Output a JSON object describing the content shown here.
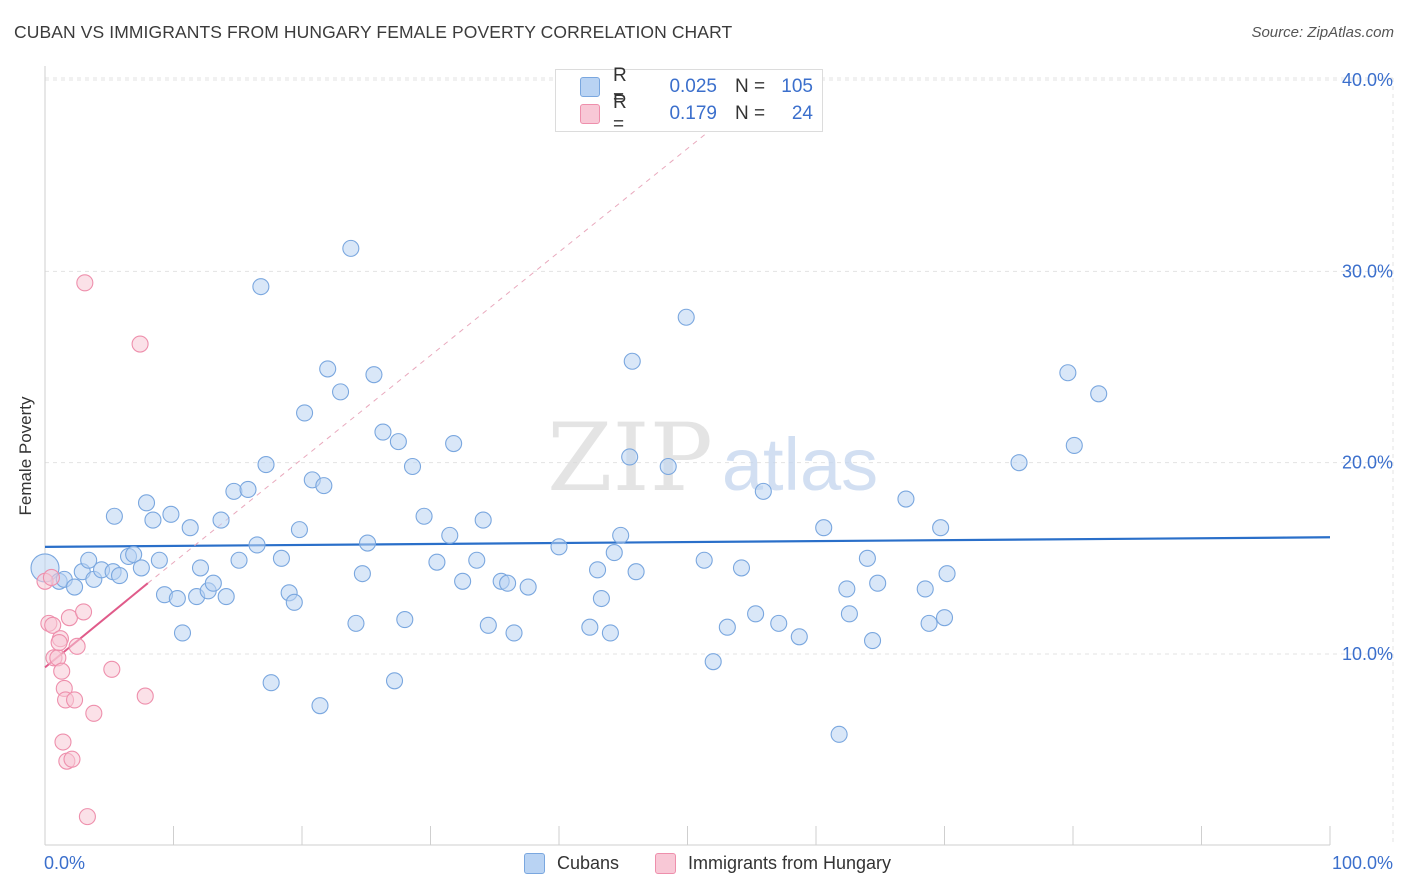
{
  "header": {
    "title": "CUBAN VS IMMIGRANTS FROM HUNGARY FEMALE POVERTY CORRELATION CHART",
    "source": "Source: ZipAtlas.com"
  },
  "colors": {
    "blue_fill": "#b9d3f3",
    "blue_stroke": "#7aa7df",
    "blue_line": "#2a6fc9",
    "pink_fill": "#f8c8d6",
    "pink_stroke": "#ee8fac",
    "pink_line": "#e05b8a",
    "axis_text": "#3b6fcc",
    "grid": "#e3e3e3"
  },
  "legend": {
    "rows": [
      {
        "r_label": "R =",
        "r_value": "0.025",
        "n_label": "N =",
        "n_value": "105"
      },
      {
        "r_label": "R =",
        "r_value": "0.179",
        "n_label": "N =",
        "n_value": "24"
      }
    ]
  },
  "bottom_legend": {
    "series1": "Cubans",
    "series2": "Immigrants from Hungary"
  },
  "watermark": {
    "part1": "ZIP",
    "part2": "atlas"
  },
  "chart_data": {
    "type": "scatter",
    "title": "CUBAN VS IMMIGRANTS FROM HUNGARY FEMALE POVERTY CORRELATION CHART",
    "xlabel": "",
    "ylabel": "Female Poverty",
    "xlim": [
      0,
      100
    ],
    "ylim": [
      0,
      42
    ],
    "x_tick_labels": [
      "0.0%",
      "100.0%"
    ],
    "y_ticks": [
      10,
      20,
      30,
      40
    ],
    "y_tick_labels": [
      "10.0%",
      "20.0%",
      "30.0%",
      "40.0%"
    ],
    "grid": true,
    "series": [
      {
        "name": "Cubans",
        "R": 0.025,
        "N": 105,
        "trend": {
          "x0": 0,
          "y0": 15.6,
          "x1": 100,
          "y1": 16.1
        },
        "points": [
          [
            0.0,
            14.5
          ],
          [
            1.1,
            13.8
          ],
          [
            1.5,
            13.9
          ],
          [
            2.3,
            13.5
          ],
          [
            2.9,
            14.3
          ],
          [
            3.4,
            14.9
          ],
          [
            3.8,
            13.9
          ],
          [
            4.4,
            14.4
          ],
          [
            5.3,
            14.3
          ],
          [
            5.4,
            17.2
          ],
          [
            5.8,
            14.1
          ],
          [
            6.5,
            15.1
          ],
          [
            6.9,
            15.2
          ],
          [
            7.5,
            14.5
          ],
          [
            7.9,
            17.9
          ],
          [
            8.4,
            17.0
          ],
          [
            8.9,
            14.9
          ],
          [
            9.3,
            13.1
          ],
          [
            9.8,
            17.3
          ],
          [
            10.3,
            12.9
          ],
          [
            10.7,
            11.1
          ],
          [
            11.3,
            16.6
          ],
          [
            11.8,
            13.0
          ],
          [
            12.1,
            14.5
          ],
          [
            12.7,
            13.3
          ],
          [
            13.1,
            13.7
          ],
          [
            13.7,
            17.0
          ],
          [
            14.1,
            13.0
          ],
          [
            14.7,
            18.5
          ],
          [
            15.1,
            14.9
          ],
          [
            15.8,
            18.6
          ],
          [
            16.5,
            15.7
          ],
          [
            16.8,
            29.2
          ],
          [
            17.2,
            19.9
          ],
          [
            17.6,
            8.5
          ],
          [
            18.4,
            15.0
          ],
          [
            19.0,
            13.2
          ],
          [
            19.4,
            12.7
          ],
          [
            19.8,
            16.5
          ],
          [
            20.2,
            22.6
          ],
          [
            20.8,
            19.1
          ],
          [
            21.4,
            7.3
          ],
          [
            21.7,
            18.8
          ],
          [
            22.0,
            24.9
          ],
          [
            23.0,
            23.7
          ],
          [
            23.8,
            31.2
          ],
          [
            24.2,
            11.6
          ],
          [
            24.7,
            14.2
          ],
          [
            25.1,
            15.8
          ],
          [
            25.6,
            24.6
          ],
          [
            26.3,
            21.6
          ],
          [
            27.2,
            8.6
          ],
          [
            27.5,
            21.1
          ],
          [
            28.0,
            11.8
          ],
          [
            28.6,
            19.8
          ],
          [
            29.5,
            17.2
          ],
          [
            30.5,
            14.8
          ],
          [
            31.5,
            16.2
          ],
          [
            31.8,
            21.0
          ],
          [
            32.5,
            13.8
          ],
          [
            33.6,
            14.9
          ],
          [
            34.1,
            17.0
          ],
          [
            34.5,
            11.5
          ],
          [
            35.5,
            13.8
          ],
          [
            36.0,
            13.7
          ],
          [
            36.5,
            11.1
          ],
          [
            37.6,
            13.5
          ],
          [
            40.0,
            15.6
          ],
          [
            42.4,
            11.4
          ],
          [
            43.0,
            14.4
          ],
          [
            43.3,
            12.9
          ],
          [
            44.0,
            11.1
          ],
          [
            44.3,
            15.3
          ],
          [
            44.8,
            16.2
          ],
          [
            45.5,
            20.3
          ],
          [
            45.7,
            25.3
          ],
          [
            46.0,
            14.3
          ],
          [
            48.5,
            19.8
          ],
          [
            49.9,
            27.6
          ],
          [
            51.3,
            14.9
          ],
          [
            52.0,
            9.6
          ],
          [
            53.1,
            11.4
          ],
          [
            54.2,
            14.5
          ],
          [
            55.3,
            12.1
          ],
          [
            55.9,
            18.5
          ],
          [
            57.1,
            11.6
          ],
          [
            58.7,
            10.9
          ],
          [
            60.6,
            16.6
          ],
          [
            61.8,
            5.8
          ],
          [
            62.4,
            13.4
          ],
          [
            62.6,
            12.1
          ],
          [
            64.0,
            15.0
          ],
          [
            64.4,
            10.7
          ],
          [
            64.8,
            13.7
          ],
          [
            67.0,
            18.1
          ],
          [
            68.5,
            13.4
          ],
          [
            68.8,
            11.6
          ],
          [
            69.7,
            16.6
          ],
          [
            70.2,
            14.2
          ],
          [
            70.0,
            11.9
          ],
          [
            75.8,
            20.0
          ],
          [
            79.6,
            24.7
          ],
          [
            80.1,
            20.9
          ],
          [
            82.0,
            23.6
          ]
        ]
      },
      {
        "name": "Immigrants from Hungary",
        "R": 0.179,
        "N": 24,
        "trend": {
          "x0": 0,
          "y0": 9.3,
          "x1": 8.0,
          "y1": 13.7
        },
        "trend_extension": {
          "x0": 8.0,
          "y0": 13.7,
          "x1": 52.0,
          "y1": 37.5
        },
        "points": [
          [
            0.0,
            13.8
          ],
          [
            0.3,
            11.6
          ],
          [
            0.6,
            11.5
          ],
          [
            0.7,
            9.8
          ],
          [
            1.0,
            9.8
          ],
          [
            1.2,
            10.8
          ],
          [
            1.3,
            9.1
          ],
          [
            1.5,
            8.2
          ],
          [
            1.7,
            4.4
          ],
          [
            1.6,
            7.6
          ],
          [
            1.9,
            11.9
          ],
          [
            2.1,
            4.5
          ],
          [
            2.3,
            7.6
          ],
          [
            2.5,
            10.4
          ],
          [
            3.0,
            12.2
          ],
          [
            3.1,
            29.4
          ],
          [
            3.3,
            1.5
          ],
          [
            3.8,
            6.9
          ],
          [
            5.2,
            9.2
          ],
          [
            7.4,
            26.2
          ],
          [
            7.8,
            7.8
          ],
          [
            1.4,
            5.4
          ],
          [
            0.5,
            14.0
          ],
          [
            1.1,
            10.6
          ]
        ]
      }
    ]
  }
}
